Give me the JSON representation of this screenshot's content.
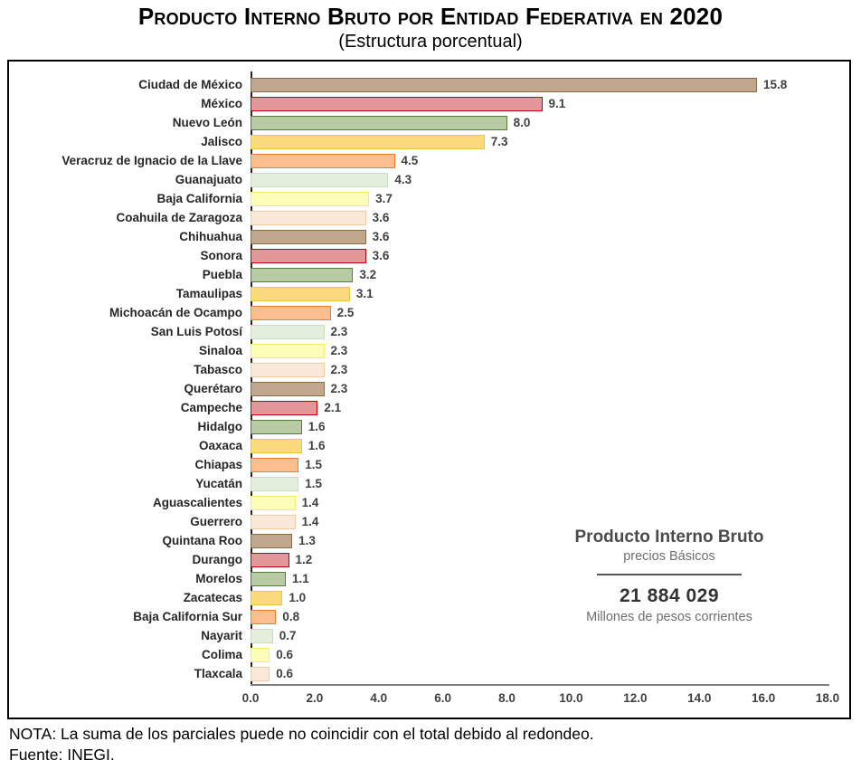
{
  "header": {
    "title": "Producto Interno Bruto por Entidad Federativa en 2020",
    "subtitle": "(Estructura porcentual)"
  },
  "chart_data": {
    "type": "bar",
    "orientation": "horizontal",
    "title": "Producto Interno Bruto por Entidad Federativa en 2020",
    "subtitle": "(Estructura porcentual)",
    "grid": false,
    "xlim": [
      0,
      18
    ],
    "x_tick_labels": [
      "0.0",
      "2.0",
      "4.0",
      "6.0",
      "8.0",
      "10.0",
      "12.0",
      "14.0",
      "16.0",
      "18.0"
    ],
    "categories": [
      "Ciudad de México",
      "México",
      "Nuevo León",
      "Jalisco",
      "Veracruz de Ignacio de la Llave",
      "Guanajuato",
      "Baja California",
      "Coahuila de Zaragoza",
      "Chihuahua",
      "Sonora",
      "Puebla",
      "Tamaulipas",
      "Michoacán de Ocampo",
      "San Luis Potosí",
      "Sinaloa",
      "Tabasco",
      "Querétaro",
      "Campeche",
      "Hidalgo",
      "Oaxaca",
      "Chiapas",
      "Yucatán",
      "Aguascalientes",
      "Guerrero",
      "Quintana Roo",
      "Durango",
      "Morelos",
      "Zacatecas",
      "Baja California Sur",
      "Nayarit",
      "Colima",
      "Tlaxcala"
    ],
    "values": [
      15.8,
      9.1,
      8.0,
      7.3,
      4.5,
      4.3,
      3.7,
      3.6,
      3.6,
      3.6,
      3.2,
      3.1,
      2.5,
      2.3,
      2.3,
      2.3,
      2.3,
      2.1,
      1.6,
      1.6,
      1.5,
      1.5,
      1.4,
      1.4,
      1.3,
      1.2,
      1.1,
      1.0,
      0.8,
      0.7,
      0.6,
      0.6
    ],
    "bar_colors_cycle": {
      "fills": [
        "#C1A78E",
        "#E49799",
        "#B8CBA5",
        "#FBDB7E",
        "#FBBE8C",
        "#E4EFDB",
        "#FDFDBA",
        "#FAE8D8"
      ],
      "borders": [
        "#876A47",
        "#C00000",
        "#567B35",
        "#F5C342",
        "#ED7D31",
        "#C5E0B4",
        "#F5EE60",
        "#F6C9A4"
      ]
    },
    "annotation": {
      "title": "Producto Interno Bruto",
      "subtitle": "precios Básicos",
      "total": "21 884 029",
      "units": "Millones de pesos corrientes"
    }
  },
  "footer": {
    "note": "NOTA: La suma de los parciales puede no coincidir con el total debido al redondeo.",
    "source": "Fuente: INEGI."
  }
}
